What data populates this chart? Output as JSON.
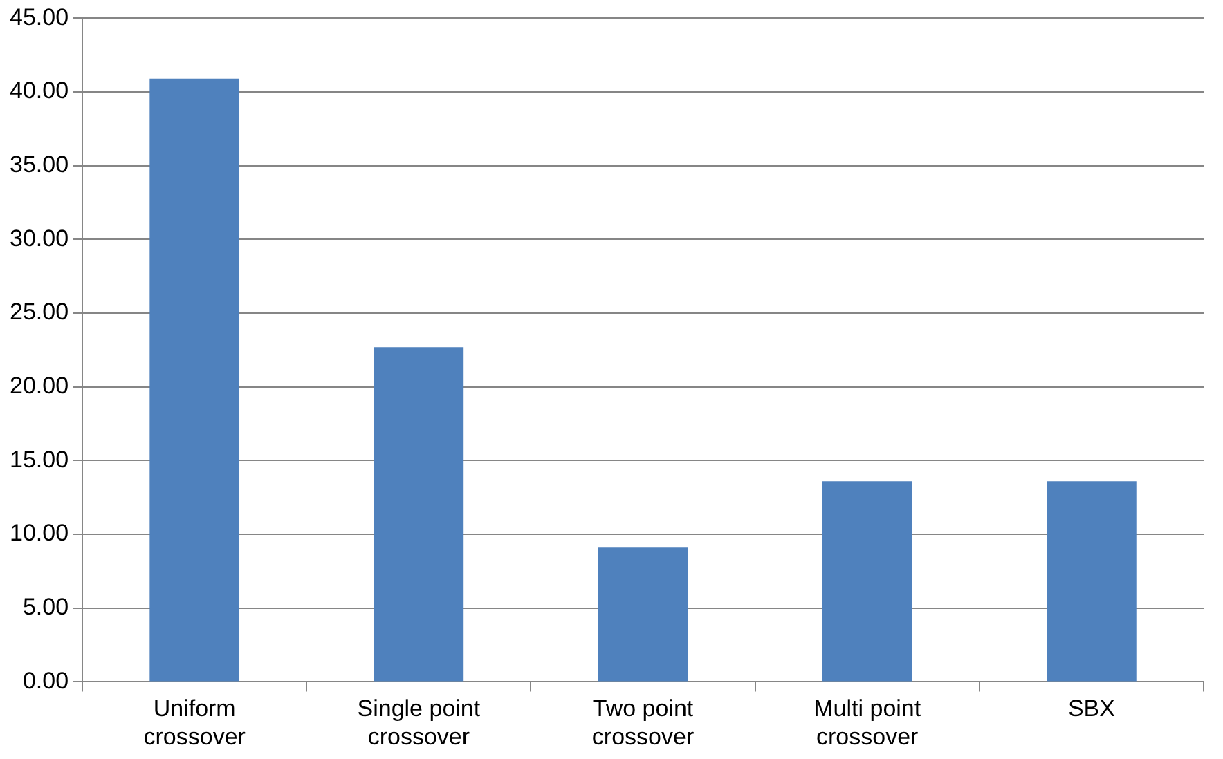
{
  "chart_data": {
    "type": "bar",
    "categories": [
      "Uniform crossover",
      "Single point crossover",
      "Two point crossover",
      "Multi point crossover",
      "SBX"
    ],
    "values": [
      40.9,
      22.7,
      9.1,
      13.6,
      13.6
    ],
    "color": "#4f81bd",
    "ylim": [
      0,
      45
    ],
    "yticks": [
      {
        "value": 0,
        "label": "0.00"
      },
      {
        "value": 5,
        "label": "5.00"
      },
      {
        "value": 10,
        "label": "10.00"
      },
      {
        "value": 15,
        "label": "15.00"
      },
      {
        "value": 20,
        "label": "20.00"
      },
      {
        "value": 25,
        "label": "25.00"
      },
      {
        "value": 30,
        "label": "30.00"
      },
      {
        "value": 35,
        "label": "35.00"
      },
      {
        "value": 40,
        "label": "40.00"
      },
      {
        "value": 45,
        "label": "45.00"
      }
    ],
    "grid": "y"
  }
}
